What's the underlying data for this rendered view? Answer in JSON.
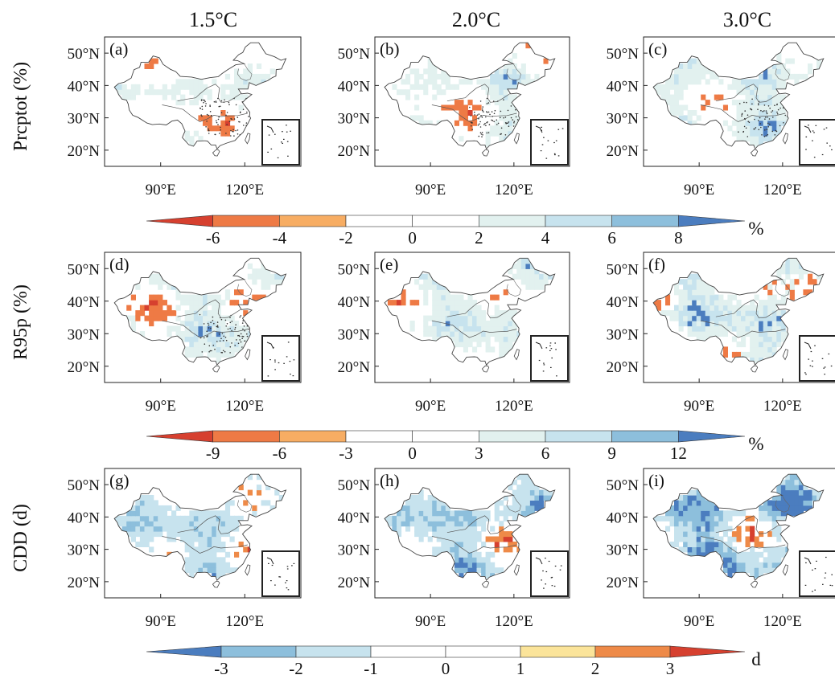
{
  "columns": [
    "1.5°C",
    "2.0°C",
    "3.0°C"
  ],
  "rows": [
    {
      "label": "Prcptot (%)",
      "colorbar": {
        "ticks": [
          "-6",
          "-4",
          "-2",
          "0",
          "2",
          "4",
          "6",
          "8"
        ],
        "unit": "%",
        "colors": [
          "#d6402f",
          "#ee7a45",
          "#f7ad63",
          "#ffffff",
          "#ffffff",
          "#e2f1ef",
          "#c7e3ee",
          "#8dbfdc",
          "#4b7dbf"
        ]
      }
    },
    {
      "label": "R95p (%)",
      "colorbar": {
        "ticks": [
          "-9",
          "-6",
          "-3",
          "0",
          "3",
          "6",
          "9",
          "12"
        ],
        "unit": "%",
        "colors": [
          "#d6402f",
          "#ee7a45",
          "#f7ad63",
          "#ffffff",
          "#ffffff",
          "#e2f1ef",
          "#c7e3ee",
          "#8dbfdc",
          "#4b7dbf"
        ]
      }
    },
    {
      "label": "CDD (d)",
      "colorbar": {
        "ticks": [
          "-3",
          "-2",
          "-1",
          "0",
          "1",
          "2",
          "3"
        ],
        "unit": "d",
        "colors": [
          "#4b7dbf",
          "#8dbfdc",
          "#c7e3ee",
          "#ffffff",
          "#ffffff",
          "#fbe49a",
          "#ee8a48",
          "#d6402f"
        ]
      }
    }
  ],
  "panels": [
    {
      "letter": "(a)",
      "mix": {
        "red": 0.1,
        "orange": 0.12,
        "lblue": 0.4,
        "blue": 0.04
      },
      "stipple": true
    },
    {
      "letter": "(b)",
      "mix": {
        "red": 0.08,
        "orange": 0.14,
        "lblue": 0.4,
        "blue": 0.08
      },
      "stipple": true
    },
    {
      "letter": "(c)",
      "mix": {
        "red": 0.03,
        "orange": 0.1,
        "lblue": 0.4,
        "blue": 0.18
      },
      "stipple": true
    },
    {
      "letter": "(d)",
      "mix": {
        "red": 0.12,
        "orange": 0.12,
        "lblue": 0.34,
        "blue": 0.18
      },
      "stipple": true
    },
    {
      "letter": "(e)",
      "mix": {
        "red": 0.1,
        "orange": 0.1,
        "lblue": 0.4,
        "blue": 0.14
      },
      "stipple": false
    },
    {
      "letter": "(f)",
      "mix": {
        "red": 0.18,
        "orange": 0.12,
        "lblue": 0.3,
        "blue": 0.24
      },
      "stipple": false
    },
    {
      "letter": "(g)",
      "mix": {
        "red": 0.14,
        "orange": 0.1,
        "lblue": 0.4,
        "blue": 0.12
      },
      "stipple": false
    },
    {
      "letter": "(h)",
      "mix": {
        "red": 0.08,
        "orange": 0.1,
        "lblue": 0.42,
        "blue": 0.18
      },
      "stipple": false
    },
    {
      "letter": "(i)",
      "mix": {
        "red": 0.1,
        "orange": 0.08,
        "lblue": 0.34,
        "blue": 0.3
      },
      "stipple": false
    }
  ],
  "chart_data": {
    "type": "heatmap",
    "xlim": [
      70,
      140
    ],
    "ylim": [
      15,
      55
    ],
    "x_ticks": [
      "90°E",
      "120°E"
    ],
    "y_ticks": [
      "20°N",
      "30°N",
      "40°N",
      "50°N"
    ]
  }
}
